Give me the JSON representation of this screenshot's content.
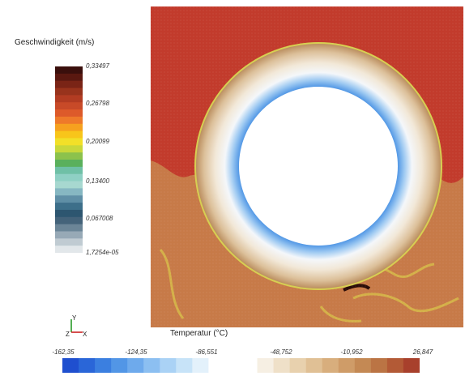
{
  "velocity_legend": {
    "title": "Geschwindigkeit (m/s)",
    "ticks": [
      "0,33497",
      "0,26798",
      "0,20099",
      "0,13400",
      "0,067008",
      "1,7254e-05"
    ],
    "colors": [
      "#3a0f0c",
      "#5a1810",
      "#7a2416",
      "#98331c",
      "#b23c22",
      "#c84a28",
      "#dd5a2a",
      "#ee7a2a",
      "#f6a11f",
      "#f8c51a",
      "#f2e028",
      "#c9d83a",
      "#8cc24c",
      "#5ab05c",
      "#6fc0a6",
      "#8fd0c4",
      "#a7d8d0",
      "#86b7c2",
      "#5f8fa6",
      "#3d6f8a",
      "#2d5670",
      "#44637a",
      "#6b8597",
      "#97a9b6",
      "#c0cbd2",
      "#e2e7ea"
    ]
  },
  "temperature_legend": {
    "title": "Temperatur (°C)",
    "ticks": [
      "-162,35",
      "-124,35",
      "-86,551",
      "-48,752",
      "-10,952",
      "26,847"
    ],
    "colors": [
      "#1f4fcf",
      "#2a66d8",
      "#3b7fe0",
      "#5296e6",
      "#6eaaec",
      "#8cbff1",
      "#aad2f5",
      "#c7e3f8",
      "#e3f1fb",
      "#ffffff",
      "#ffffff",
      "#ffffff",
      "#f6efe3",
      "#efe0c8",
      "#e8d1ae",
      "#e0c095",
      "#d8ae7d",
      "#cf9c68",
      "#c48954",
      "#bb7444",
      "#b35a36",
      "#a8402c"
    ]
  },
  "axis_triad": {
    "y": "Y",
    "z": "Z",
    "x": "X"
  },
  "colors": {
    "hot_fluid": "#c23b2c",
    "mid_fluid": "#c77a48",
    "pipe_inner": "#1f6fd6"
  }
}
